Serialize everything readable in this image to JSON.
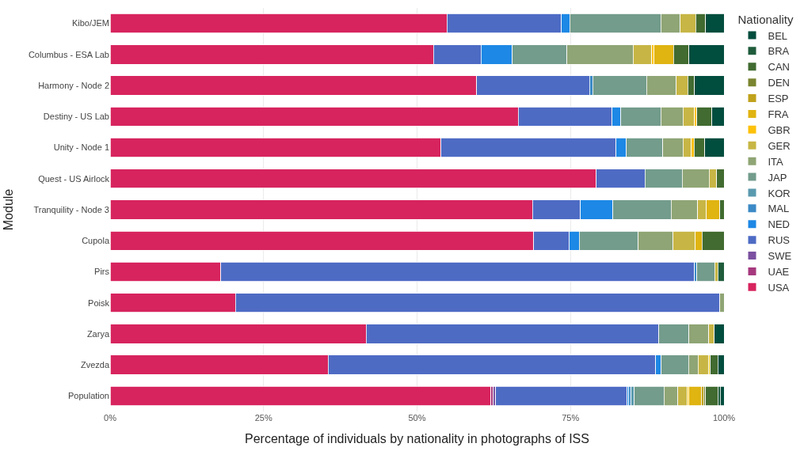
{
  "chart_data": {
    "type": "bar",
    "orientation": "horizontal",
    "stacked": true,
    "xlabel": "Percentage of individuals by nationality in photographs of ISS",
    "ylabel": "Module",
    "legend_title": "Nationality",
    "legend": "right",
    "grid": "x",
    "categories": [
      "Kibo/JEM",
      "Columbus - ESA Lab",
      "Harmony - Node 2",
      "Destiny - US Lab",
      "Unity - Node 1",
      "Quest - US Airlock",
      "Tranquility - Node 3",
      "Cupola",
      "Pirs",
      "Poisk",
      "Zarya",
      "Zvezda",
      "Population"
    ],
    "xlim": [
      0,
      100
    ],
    "xticks": [
      {
        "value": 0,
        "label": "0%"
      },
      {
        "value": 25,
        "label": "25%"
      },
      {
        "value": 50,
        "label": "50%"
      },
      {
        "value": 75,
        "label": "75%"
      },
      {
        "value": 100,
        "label": "100%"
      }
    ],
    "series": [
      {
        "name": "USA",
        "color": "#d7245e",
        "values": [
          54.9,
          52.7,
          59.7,
          66.5,
          53.9,
          79.2,
          68.8,
          69.0,
          18.0,
          20.4,
          41.7,
          35.5,
          62.0
        ]
      },
      {
        "name": "UAE",
        "color": "#a6397e",
        "values": [
          null,
          null,
          null,
          null,
          null,
          null,
          null,
          null,
          null,
          null,
          null,
          null,
          0.4
        ]
      },
      {
        "name": "SWE",
        "color": "#7b50a0",
        "values": [
          null,
          null,
          null,
          null,
          null,
          null,
          null,
          null,
          null,
          null,
          null,
          null,
          0.4
        ]
      },
      {
        "name": "RUS",
        "color": "#4e6bc4",
        "values": [
          18.6,
          7.7,
          18.4,
          15.3,
          28.5,
          7.9,
          7.8,
          5.8,
          77.2,
          78.9,
          47.7,
          53.4,
          21.4
        ]
      },
      {
        "name": "NED",
        "color": "#1d88e5",
        "values": [
          1.4,
          5.1,
          null,
          1.4,
          1.7,
          null,
          5.3,
          1.6,
          null,
          null,
          null,
          0.9,
          0.3
        ]
      },
      {
        "name": "MAL",
        "color": "#3c8ac6",
        "values": [
          null,
          null,
          0.5,
          null,
          null,
          null,
          null,
          null,
          0.4,
          null,
          null,
          null,
          0.4
        ]
      },
      {
        "name": "KOR",
        "color": "#5a9aae",
        "values": [
          null,
          null,
          null,
          null,
          null,
          null,
          null,
          null,
          null,
          null,
          null,
          null,
          0.5
        ]
      },
      {
        "name": "JAP",
        "color": "#739c8c",
        "values": [
          14.8,
          8.9,
          8.8,
          6.5,
          5.9,
          6.1,
          9.5,
          9.6,
          2.9,
          null,
          4.9,
          4.4,
          4.8
        ]
      },
      {
        "name": "ITA",
        "color": "#8fa575",
        "values": [
          3.2,
          10.8,
          4.8,
          3.6,
          3.3,
          4.4,
          4.3,
          5.7,
          null,
          0.7,
          3.2,
          1.6,
          2.3
        ]
      },
      {
        "name": "GER",
        "color": "#c7b645",
        "values": [
          2.5,
          3.0,
          1.9,
          1.9,
          1.4,
          1.2,
          1.4,
          3.6,
          0.5,
          null,
          0.9,
          1.7,
          1.5
        ]
      },
      {
        "name": "GBR",
        "color": "#fdc10a",
        "values": [
          null,
          0.4,
          null,
          0.4,
          0.4,
          null,
          null,
          null,
          null,
          null,
          null,
          0.3,
          0.3
        ]
      },
      {
        "name": "FRA",
        "color": "#e0b411",
        "values": [
          null,
          3.2,
          null,
          null,
          null,
          null,
          2.2,
          1.1,
          null,
          null,
          null,
          null,
          2.0
        ]
      },
      {
        "name": "ESP",
        "color": "#c0a21b",
        "values": [
          null,
          null,
          null,
          null,
          null,
          null,
          null,
          null,
          null,
          null,
          null,
          null,
          0.4
        ]
      },
      {
        "name": "DEN",
        "color": "#7a8530",
        "values": [
          null,
          null,
          null,
          null,
          null,
          null,
          null,
          null,
          null,
          null,
          null,
          null,
          0.3
        ]
      },
      {
        "name": "CAN",
        "color": "#416b30",
        "values": [
          1.6,
          2.5,
          1.1,
          2.4,
          1.8,
          1.2,
          0.7,
          3.6,
          null,
          null,
          null,
          1.2,
          2.0
        ]
      },
      {
        "name": "BRA",
        "color": "#1f5c3c",
        "values": [
          null,
          null,
          null,
          null,
          null,
          null,
          null,
          null,
          1.0,
          null,
          null,
          null,
          0.4
        ]
      },
      {
        "name": "BEL",
        "color": "#014d3e",
        "values": [
          3.0,
          5.7,
          4.8,
          2.0,
          3.1,
          null,
          null,
          null,
          null,
          null,
          1.6,
          1.0,
          0.6
        ]
      }
    ]
  }
}
